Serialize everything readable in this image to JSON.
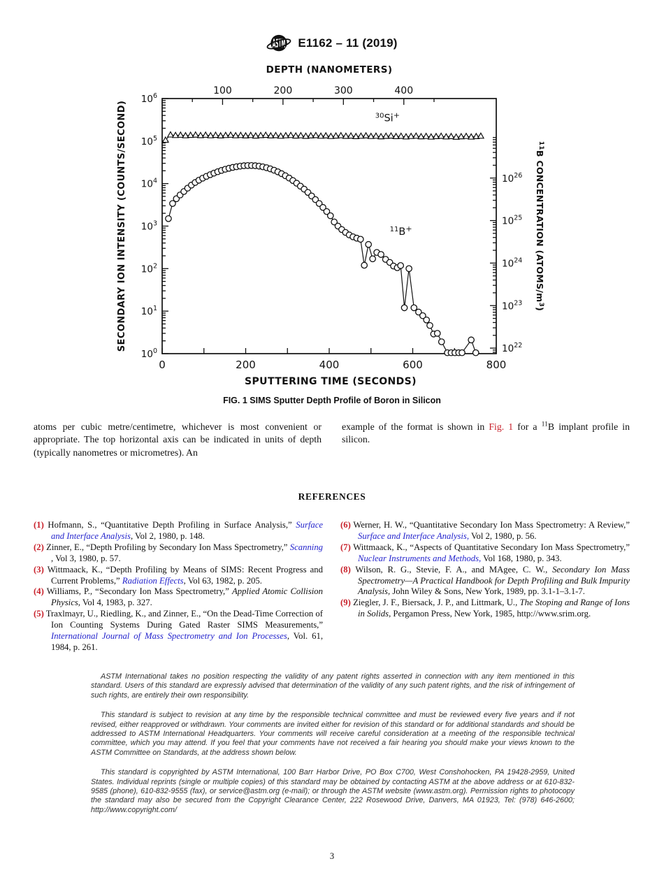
{
  "header": {
    "title": "E1162 – 11 (2019)",
    "logo": "astm-globe-logo"
  },
  "figure": {
    "caption": "FIG. 1  SIMS Sputter Depth Profile of Boron in Silicon"
  },
  "chart_data": {
    "type": "line",
    "xlabel": "SPUTTERING TIME (SECONDS)",
    "xlim": [
      0,
      800
    ],
    "x_ticks": [
      0,
      200,
      400,
      600,
      800
    ],
    "x_minor_ticks": [
      100,
      300,
      500,
      700
    ],
    "top_axis": {
      "label": "DEPTH (NANOMETERS)",
      "ticks": [
        100,
        200,
        300,
        400
      ],
      "minor_ticks": [
        50,
        150,
        250,
        350,
        450
      ],
      "nm_full_span": 553
    },
    "ylabel_left": "SECONDARY ION INTENSITY (COUNTS/SECOND)",
    "y_left_exponents": [
      0,
      1,
      2,
      3,
      4,
      5,
      6
    ],
    "ylim_counts": [
      1,
      1000000
    ],
    "ylabel_right": "11B CONCENTRATION (ATOMS/m3)",
    "y_right_exponents": [
      22,
      23,
      24,
      25,
      26
    ],
    "ylim_right": [
      1e+22,
      1e+26
    ],
    "right_axis_offset_decades": 0.13,
    "grid": false,
    "labels": [
      {
        "series": "30Si+",
        "sup_pre": "30",
        "base": "Si",
        "sup_post": "+",
        "x_s": 510,
        "y_counts": 295000
      },
      {
        "series": "11B+",
        "sup_pre": "11",
        "base": "B",
        "sup_post": "+",
        "x_s": 545,
        "y_counts": 620
      }
    ],
    "series": [
      {
        "name": "30Si+",
        "marker": "triangle",
        "points": [
          [
            8,
            105000
          ],
          [
            20,
            140000
          ],
          [
            32,
            136000
          ],
          [
            44,
            138000
          ],
          [
            56,
            134000
          ],
          [
            68,
            137000
          ],
          [
            80,
            139000
          ],
          [
            92,
            135000
          ],
          [
            104,
            138000
          ],
          [
            116,
            134000
          ],
          [
            128,
            137000
          ],
          [
            140,
            133000
          ],
          [
            152,
            136000
          ],
          [
            164,
            138000
          ],
          [
            176,
            134000
          ],
          [
            188,
            136000
          ],
          [
            200,
            133000
          ],
          [
            212,
            136000
          ],
          [
            224,
            132000
          ],
          [
            236,
            135000
          ],
          [
            248,
            137000
          ],
          [
            260,
            133000
          ],
          [
            272,
            135000
          ],
          [
            284,
            131000
          ],
          [
            296,
            134000
          ],
          [
            308,
            136000
          ],
          [
            320,
            132000
          ],
          [
            332,
            134000
          ],
          [
            344,
            130000
          ],
          [
            356,
            133000
          ],
          [
            368,
            135000
          ],
          [
            380,
            131000
          ],
          [
            392,
            133000
          ],
          [
            404,
            129000
          ],
          [
            416,
            132000
          ],
          [
            428,
            134000
          ],
          [
            440,
            130000
          ],
          [
            452,
            132000
          ],
          [
            464,
            128000
          ],
          [
            476,
            131000
          ],
          [
            488,
            133000
          ],
          [
            500,
            129000
          ],
          [
            512,
            131000
          ],
          [
            524,
            127000
          ],
          [
            536,
            130000
          ],
          [
            548,
            132000
          ],
          [
            560,
            128000
          ],
          [
            572,
            130000
          ],
          [
            584,
            126000
          ],
          [
            596,
            129000
          ],
          [
            608,
            131000
          ],
          [
            620,
            127000
          ],
          [
            632,
            129000
          ],
          [
            644,
            125000
          ],
          [
            656,
            128000
          ],
          [
            668,
            130000
          ],
          [
            680,
            126000
          ],
          [
            692,
            128000
          ],
          [
            704,
            124000
          ],
          [
            716,
            127000
          ],
          [
            728,
            129000
          ],
          [
            740,
            125000
          ],
          [
            752,
            128000
          ],
          [
            763,
            131000
          ]
        ]
      },
      {
        "name": "11B+",
        "marker": "circle",
        "points": [
          [
            15,
            1500
          ],
          [
            25,
            3400
          ],
          [
            34,
            4400
          ],
          [
            43,
            5400
          ],
          [
            52,
            6500
          ],
          [
            61,
            7800
          ],
          [
            70,
            9200
          ],
          [
            79,
            10600
          ],
          [
            88,
            12000
          ],
          [
            97,
            13400
          ],
          [
            106,
            14800
          ],
          [
            115,
            16200
          ],
          [
            124,
            17600
          ],
          [
            133,
            19000
          ],
          [
            142,
            20400
          ],
          [
            151,
            21700
          ],
          [
            160,
            22900
          ],
          [
            169,
            24000
          ],
          [
            178,
            24900
          ],
          [
            187,
            25700
          ],
          [
            196,
            26300
          ],
          [
            205,
            26600
          ],
          [
            214,
            26600
          ],
          [
            223,
            26300
          ],
          [
            232,
            25700
          ],
          [
            241,
            24800
          ],
          [
            250,
            23600
          ],
          [
            259,
            22200
          ],
          [
            268,
            20600
          ],
          [
            277,
            18900
          ],
          [
            286,
            17100
          ],
          [
            295,
            15300
          ],
          [
            304,
            13500
          ],
          [
            313,
            11800
          ],
          [
            322,
            10200
          ],
          [
            331,
            8700
          ],
          [
            340,
            7400
          ],
          [
            349,
            6200
          ],
          [
            358,
            5100
          ],
          [
            367,
            4200
          ],
          [
            376,
            3400
          ],
          [
            385,
            2750
          ],
          [
            394,
            2200
          ],
          [
            403,
            1750
          ],
          [
            412,
            1250
          ],
          [
            421,
            1000
          ],
          [
            430,
            830
          ],
          [
            439,
            710
          ],
          [
            448,
            620
          ],
          [
            457,
            560
          ],
          [
            466,
            520
          ],
          [
            475,
            490
          ],
          [
            484,
            120
          ],
          [
            494,
            370
          ],
          [
            504,
            170
          ],
          [
            514,
            240
          ],
          [
            524,
            215
          ],
          [
            535,
            165
          ],
          [
            545,
            140
          ],
          [
            554,
            115
          ],
          [
            563,
            105
          ],
          [
            571,
            118
          ],
          [
            580,
            12
          ],
          [
            591,
            100
          ],
          [
            603,
            12
          ],
          [
            614,
            9.5
          ],
          [
            624,
            7.8
          ],
          [
            633,
            6.2
          ],
          [
            641,
            4.6
          ],
          [
            650,
            2.9
          ],
          [
            659,
            3.0
          ],
          [
            669,
            1.9
          ],
          [
            683,
            1.05
          ],
          [
            692,
            1.05
          ],
          [
            701,
            1.05
          ],
          [
            710,
            1.05
          ],
          [
            718,
            1.05
          ],
          [
            740,
            2.1
          ],
          [
            751,
            1.05
          ]
        ]
      }
    ]
  },
  "body": {
    "left_paragraph": "atoms per cubic metre/centimetre, whichever is most convenient or appropriate. The top horizontal axis can be indicated in units of depth (typically nanometres or micrometres). An",
    "right_segments": [
      {
        "s": "t",
        "text": "example of the format is shown in "
      },
      {
        "s": "r",
        "text": "Fig. 1"
      },
      {
        "s": "t",
        "text": " for a "
      },
      {
        "s": "sup",
        "text": "11"
      },
      {
        "s": "t",
        "text": "B implant profile in silicon."
      }
    ]
  },
  "references": {
    "heading": "REFERENCES",
    "left_items": [
      {
        "num": "(1)",
        "segments": [
          {
            "s": "t",
            "text": "Hofmann, S., “Quantitative Depth Profiling in Surface Analysis,” "
          },
          {
            "s": "j",
            "text": "Surface and Interface Analysis"
          },
          {
            "s": "t",
            "text": ", Vol 2, 1980, p. 148."
          }
        ]
      },
      {
        "num": "(2)",
        "segments": [
          {
            "s": "t",
            "text": "Zinner, E., “Depth Profiling by Secondary Ion Mass Spectrometry,” "
          },
          {
            "s": "j",
            "text": "Scanning"
          },
          {
            "s": "t",
            "text": " , Vol 3, 1980, p. 57."
          }
        ]
      },
      {
        "num": "(3)",
        "segments": [
          {
            "s": "t",
            "text": "Wittmaack, K., “Depth Profiling by Means of SIMS: Recent Progress and Current Problems,” "
          },
          {
            "s": "j",
            "text": "Radiation Effects"
          },
          {
            "s": "t",
            "text": ", Vol 63, 1982, p. 205."
          }
        ]
      },
      {
        "num": "(4)",
        "segments": [
          {
            "s": "t",
            "text": "Williams, P., “Secondary Ion Mass Spectrometry,” "
          },
          {
            "s": "i",
            "text": "Applied Atomic Collision Physics"
          },
          {
            "s": "t",
            "text": ", Vol 4, 1983, p. 327."
          }
        ]
      },
      {
        "num": "(5)",
        "segments": [
          {
            "s": "t",
            "text": "Traxlmayr, U., Riedling, K., and Zinner, E., “On the Dead-Time Correction of Ion Counting Systems During Gated Raster SIMS Measurements,” "
          },
          {
            "s": "j",
            "text": "International Journal of Mass Spectrometry and Ion Processes"
          },
          {
            "s": "t",
            "text": ", Vol. 61, 1984, p. 261."
          }
        ]
      }
    ],
    "right_items": [
      {
        "num": "(6)",
        "segments": [
          {
            "s": "t",
            "text": "Werner, H. W., “Quantitative Secondary Ion Mass Spectrometry: A Review,” "
          },
          {
            "s": "j",
            "text": "Surface and Interface Analysis,"
          },
          {
            "s": "t",
            "text": " Vol 2, 1980, p. 56."
          }
        ]
      },
      {
        "num": "(7)",
        "segments": [
          {
            "s": "t",
            "text": "Wittmaack, K., “Aspects of Quantitative Secondary Ion Mass Spectrometry,” "
          },
          {
            "s": "j",
            "text": "Nuclear Instruments and Methods,"
          },
          {
            "s": "t",
            "text": " Vol 168, 1980, p. 343."
          }
        ]
      },
      {
        "num": "(8)",
        "segments": [
          {
            "s": "t",
            "text": "Wilson, R. G., Stevie, F. A., and MAgee, C. W., "
          },
          {
            "s": "i",
            "text": "Secondary Ion Mass Spectrometry—A Practical Handbook for Depth Profiling and Bulk Impurity Analysis"
          },
          {
            "s": "t",
            "text": ", John Wiley & Sons, New York, 1989, pp. 3.1-1–3.1-7."
          }
        ]
      },
      {
        "num": "(9)",
        "segments": [
          {
            "s": "t",
            "text": "Ziegler, J. F., Biersack, J. P., and Littmark, U., "
          },
          {
            "s": "i",
            "text": "The Stoping and Range of Ions in Solids"
          },
          {
            "s": "t",
            "text": ", Pergamon Press, New York, 1985, http://www.srim.org."
          }
        ]
      }
    ]
  },
  "legal": {
    "paragraphs": [
      "ASTM International takes no position respecting the validity of any patent rights asserted in connection with any item mentioned in this standard. Users of this standard are expressly advised that determination of the validity of any such patent rights, and the risk of infringement of such rights, are entirely their own responsibility.",
      "This standard is subject to revision at any time by the responsible technical committee and must be reviewed every five years and if not revised, either reapproved or withdrawn. Your comments are invited either for revision of this standard or for additional standards and should be addressed to ASTM International Headquarters. Your comments will receive careful consideration at a meeting of the responsible technical committee, which you may attend. If you feel that your comments have not received a fair hearing you should make your views known to the ASTM Committee on Standards, at the address shown below.",
      "This standard is copyrighted by ASTM International, 100 Barr Harbor Drive, PO Box C700, West Conshohocken, PA 19428-2959, United States. Individual reprints (single or multiple copies) of this standard may be obtained by contacting ASTM at the above address or at 610-832-9585 (phone), 610-832-9555 (fax), or service@astm.org (e-mail); or through the ASTM website (www.astm.org). Permission rights to photocopy the standard may also be secured from the Copyright Clearance Center, 222 Rosewood Drive, Danvers, MA 01923, Tel: (978) 646-2600; http://www.copyright.com/"
    ]
  },
  "footer": {
    "page_number": "3"
  },
  "colors": {
    "red": "#c8202a",
    "blue": "#2424cc",
    "ink": "#111111"
  }
}
